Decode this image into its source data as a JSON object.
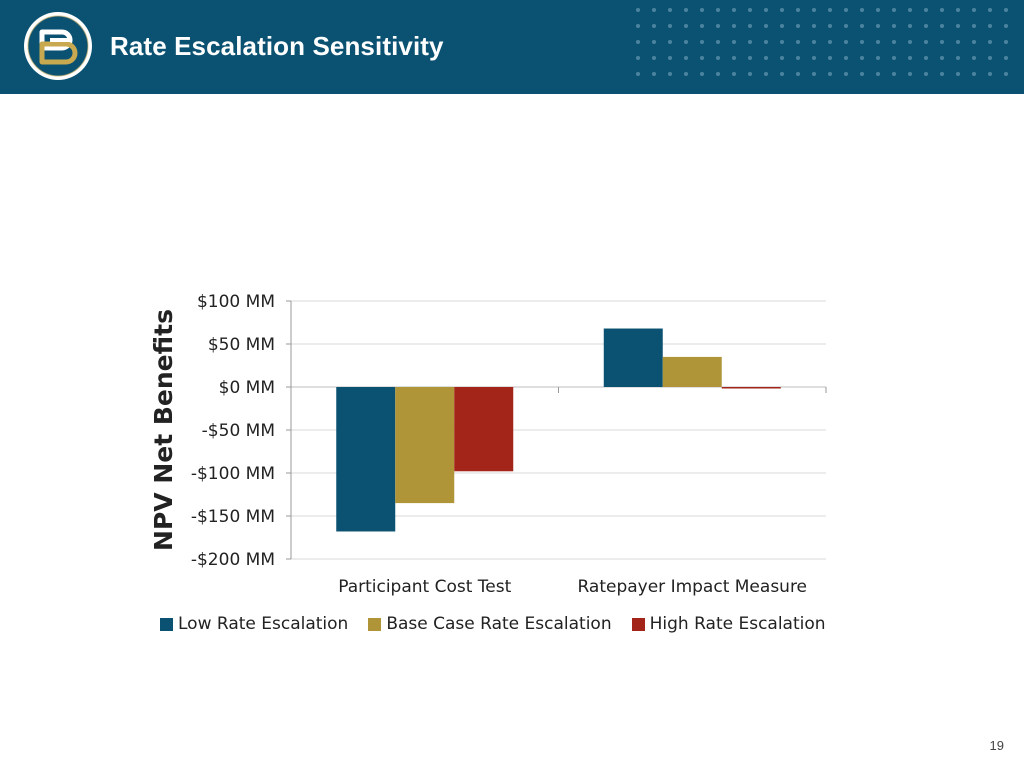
{
  "header": {
    "title": "Rate Escalation Sensitivity",
    "background_color": "#0b5272",
    "logo_icon": "eb-monogram-logo"
  },
  "page_number": "19",
  "chart_data": {
    "type": "bar",
    "ylabel": "NPV Net Benefits",
    "xlabel": "",
    "categories": [
      "Participant Cost Test",
      "Ratepayer Impact Measure"
    ],
    "series": [
      {
        "name": "Low Rate Escalation",
        "color": "#0b5272",
        "values": [
          -168,
          68
        ]
      },
      {
        "name": "Base Case Rate Escalation",
        "color": "#b09538",
        "values": [
          -135,
          35
        ]
      },
      {
        "name": "High Rate Escalation",
        "color": "#a32418",
        "values": [
          -98,
          -1
        ]
      }
    ],
    "ylim": [
      -200,
      100
    ],
    "yticks": [
      100,
      50,
      0,
      -50,
      -100,
      -150,
      -200
    ],
    "ytick_labels": [
      "$100  MM",
      "$50  MM",
      "$0  MM",
      "-$50  MM",
      "-$100  MM",
      "-$150  MM",
      "-$200  MM"
    ],
    "grid": true,
    "legend_position": "bottom"
  }
}
